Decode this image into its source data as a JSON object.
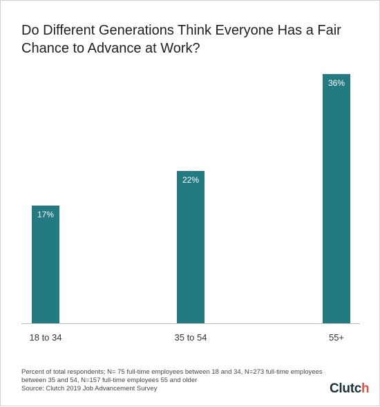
{
  "title": "Do Different Generations Think Everyone Has a Fair Chance to Advance at Work?",
  "footnote": {
    "line1": "Percent of total respondents; N= 75 full-time employees between 18 and 34, N=273 full-time employees between 35 and 54, N=157 full-time employees 55 and older",
    "line2": "Source: Clutch 2019 Job Advancement Survey"
  },
  "logo": {
    "text": "Clutch",
    "text_main": "Clutc",
    "text_end": "h"
  },
  "colors": {
    "bar": "#237a80",
    "axis": "#bbbbbb",
    "logo_accent": "#e8523f"
  },
  "chart_data": {
    "type": "bar",
    "title": "Do Different Generations Think Everyone Has a Fair Chance to Advance at Work?",
    "categories": [
      "18 to 34",
      "35 to 54",
      "55+"
    ],
    "values": [
      17,
      22,
      36
    ],
    "value_labels": [
      "17%",
      "22%",
      "36%"
    ],
    "xlabel": "",
    "ylabel": "",
    "ylim": [
      0,
      36
    ],
    "grid": false,
    "legend": "none"
  }
}
